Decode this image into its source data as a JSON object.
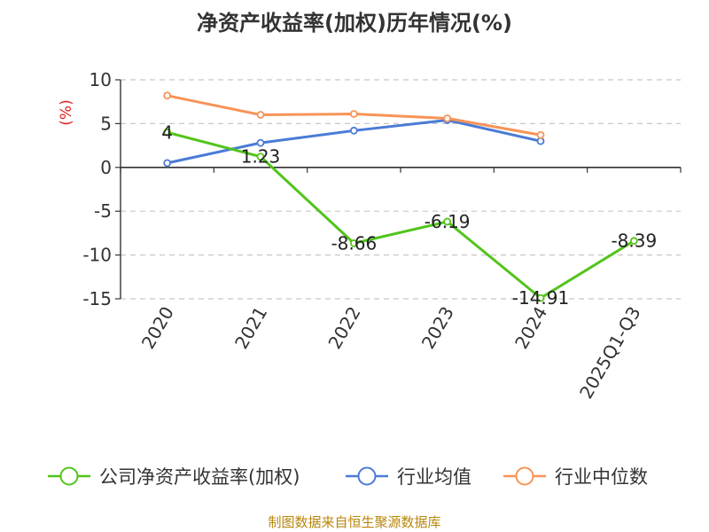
{
  "title": "净资产收益率(加权)历年情况(%)",
  "source": "制图数据来自恒生聚源数据库",
  "chart_data": {
    "type": "line",
    "title": "净资产收益率(加权)历年情况(%)",
    "ylabel": "(%)",
    "xlabel": "",
    "ylim": [
      -15,
      10
    ],
    "yticks": [
      10,
      5,
      0,
      -5,
      -10,
      -15
    ],
    "categories": [
      "2020",
      "2021",
      "2022",
      "2023",
      "2024",
      "2025Q1-Q3"
    ],
    "series": [
      {
        "name": "公司净资产收益率(加权)",
        "color": "#52c41a",
        "values": [
          4,
          1.23,
          -8.66,
          -6.19,
          -14.91,
          -8.39
        ],
        "labels": [
          "4",
          "1.23",
          "-8.66",
          "-6.19",
          "-14.91",
          "-8.39"
        ]
      },
      {
        "name": "行业均值",
        "color": "#4a7bd6",
        "values": [
          0.5,
          2.8,
          4.2,
          5.4,
          3.0,
          null
        ]
      },
      {
        "name": "行业中位数",
        "color": "#f79357",
        "values": [
          8.2,
          6.0,
          6.1,
          5.6,
          3.7,
          null
        ]
      }
    ],
    "legend_position": "bottom"
  }
}
